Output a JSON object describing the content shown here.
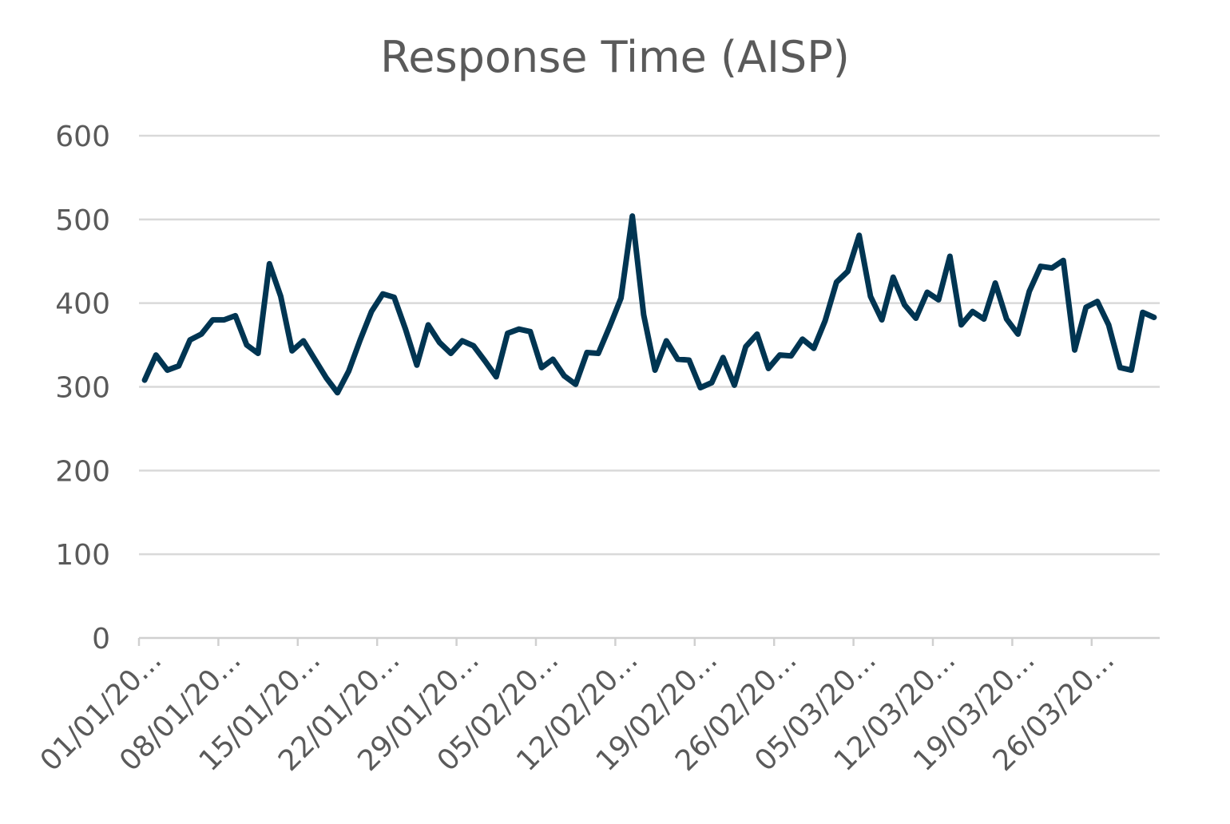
{
  "chart_data": {
    "type": "line",
    "title": "Response Time (AISP)",
    "xlabel": "",
    "ylabel": "",
    "ylim": [
      0,
      600
    ],
    "yticks": [
      0,
      100,
      200,
      300,
      400,
      500,
      600
    ],
    "grid": true,
    "legend": "none",
    "x_tick_labels": [
      "01/01/20...",
      "08/01/20...",
      "15/01/20...",
      "22/01/20...",
      "29/01/20...",
      "05/02/20...",
      "12/02/20...",
      "19/02/20...",
      "26/02/20...",
      "05/03/20...",
      "12/03/20...",
      "19/03/20...",
      "26/03/20..."
    ],
    "series": [
      {
        "color": "#003552",
        "values": [
          308,
          338,
          320,
          325,
          356,
          363,
          380,
          380,
          385,
          350,
          340,
          447,
          408,
          343,
          355,
          333,
          311,
          293,
          319,
          356,
          390,
          411,
          407,
          369,
          326,
          374,
          353,
          340,
          355,
          349,
          331,
          312,
          364,
          369,
          366,
          323,
          333,
          313,
          303,
          341,
          340,
          372,
          406,
          504,
          386,
          320,
          355,
          333,
          332,
          299,
          305,
          335,
          302,
          348,
          363,
          322,
          338,
          337,
          357,
          346,
          379,
          425,
          438,
          481,
          408,
          380,
          431,
          398,
          382,
          413,
          404,
          456,
          374,
          390,
          381,
          424,
          381,
          363,
          414,
          444,
          442,
          451,
          344,
          395,
          402,
          374,
          323,
          320,
          389,
          383
        ]
      }
    ]
  }
}
